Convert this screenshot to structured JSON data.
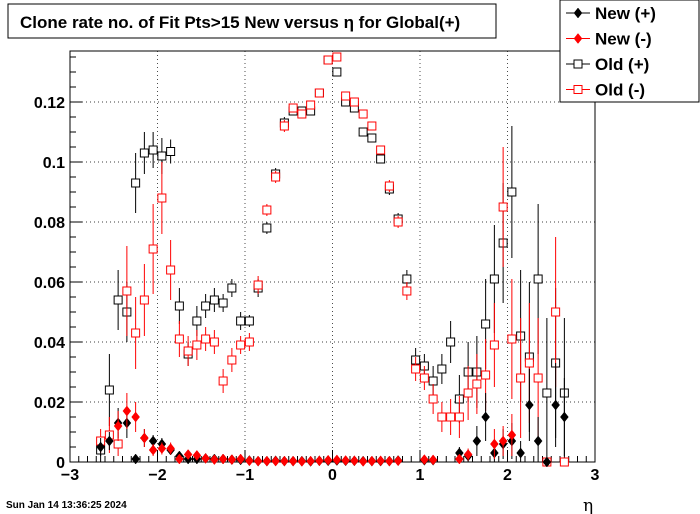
{
  "chart_data": {
    "type": "scatter",
    "title": "Clone rate no. of Fit Pts>15 New versus η for Global(+)",
    "xlabel": "η",
    "ylabel": "",
    "xlim": [
      -3,
      3
    ],
    "ylim": [
      0,
      0.137
    ],
    "x_ticks": [
      -3,
      -2,
      -1,
      0,
      1,
      2,
      3
    ],
    "x_tick_labels": [
      "−3",
      "−2",
      "−1",
      "0",
      "1",
      "2",
      "3"
    ],
    "y_ticks": [
      0,
      0.02,
      0.04,
      0.06,
      0.08,
      0.1,
      0.12
    ],
    "y_tick_labels": [
      "0",
      "0.02",
      "0.04",
      "0.06",
      "0.08",
      "0.1",
      "0.12"
    ],
    "grid": true,
    "legend_position": "top-right",
    "timestamp": "Sun Jan 14 13:36:25 2024",
    "series": [
      {
        "name": "New (+)",
        "color": "#000000",
        "marker": "diamond-filled",
        "x": [
          -2.65,
          -2.55,
          -2.45,
          -2.35,
          -2.25,
          -2.15,
          -2.05,
          -1.95,
          -1.85,
          -1.75,
          -1.65,
          -1.55,
          -1.45,
          -1.35,
          -1.25,
          -1.15,
          -1.05,
          -0.95,
          -0.85,
          -0.75,
          -0.65,
          -0.55,
          -0.45,
          -0.35,
          -0.25,
          -0.15,
          -0.05,
          0.05,
          0.15,
          0.25,
          0.35,
          0.45,
          0.55,
          0.65,
          0.75,
          1.05,
          1.15,
          1.45,
          1.55,
          1.65,
          1.75,
          1.85,
          1.95,
          2.05,
          2.15,
          2.25,
          2.35,
          2.45,
          2.55,
          2.65
        ],
        "y": [
          0.005,
          0.007,
          0.013,
          0.013,
          0.001,
          0.008,
          0.007,
          0.006,
          0.004,
          0.002,
          0.001,
          0.001,
          0.0012,
          0.001,
          0.001,
          0.0008,
          0.0007,
          0.0005,
          0.0003,
          0.0003,
          0.0004,
          0.0003,
          0.0003,
          0.0003,
          0.0002,
          0.0004,
          0.0004,
          0.0005,
          0.0004,
          0.0004,
          0.0003,
          0.0003,
          0.0003,
          0.0003,
          0.0005,
          0.0006,
          0.0006,
          0.003,
          0.002,
          0.007,
          0.015,
          0.003,
          0.006,
          0.007,
          0.003,
          0.019,
          0.007,
          0.0,
          0.019,
          0.015
        ],
        "err": [
          0.003,
          0.003,
          0.005,
          0.005,
          0.0015,
          0.003,
          0.002,
          0.002,
          0.0015,
          0.001,
          0.0005,
          0.0005,
          0.0005,
          0.0004,
          0.0004,
          0.0003,
          0.0003,
          0.0002,
          0.0002,
          0.0002,
          0.0002,
          0.0002,
          0.0002,
          0.0002,
          0.0002,
          0.0002,
          0.0002,
          0.0002,
          0.0002,
          0.0002,
          0.0002,
          0.0002,
          0.0002,
          0.0002,
          0.0003,
          0.0005,
          0.0005,
          0.002,
          0.002,
          0.005,
          0.008,
          0.003,
          0.005,
          0.006,
          0.004,
          0.012,
          0.008,
          0.0,
          0.014,
          0.013
        ]
      },
      {
        "name": "New (-)",
        "color": "#ff0000",
        "marker": "diamond-filled",
        "x": [
          -2.45,
          -2.35,
          -2.25,
          -2.15,
          -2.05,
          -1.95,
          -1.85,
          -1.75,
          -1.65,
          -1.55,
          -1.45,
          -1.35,
          -1.25,
          -1.15,
          -1.05,
          -0.95,
          -0.85,
          -0.75,
          -0.65,
          -0.55,
          -0.45,
          -0.35,
          -0.25,
          -0.15,
          -0.05,
          0.05,
          0.15,
          0.25,
          0.35,
          0.45,
          0.55,
          0.65,
          0.75,
          1.05,
          1.15,
          1.45,
          1.55,
          1.85,
          1.95,
          2.05
        ],
        "y": [
          0.012,
          0.017,
          0.015,
          0.008,
          0.004,
          0.0045,
          0.0045,
          0.001,
          0.0025,
          0.0022,
          0.0012,
          0.0008,
          0.001,
          0.0008,
          0.001,
          0.0004,
          0.0003,
          0.0003,
          0.0003,
          0.0003,
          0.0003,
          0.0002,
          0.0003,
          0.0004,
          0.0006,
          0.0007,
          0.0005,
          0.0004,
          0.0002,
          0.0003,
          0.0004,
          0.0003,
          0.0004,
          0.0008,
          0.0007,
          0.001,
          0.0025,
          0.006,
          0.007,
          0.009
        ],
        "err": [
          0.005,
          0.006,
          0.005,
          0.003,
          0.002,
          0.002,
          0.002,
          0.001,
          0.0012,
          0.001,
          0.0006,
          0.0005,
          0.0005,
          0.0004,
          0.0004,
          0.0002,
          0.0002,
          0.0002,
          0.0002,
          0.0002,
          0.0002,
          0.0002,
          0.0002,
          0.0002,
          0.0002,
          0.0002,
          0.0002,
          0.0002,
          0.0002,
          0.0002,
          0.0002,
          0.0002,
          0.0003,
          0.0005,
          0.0005,
          0.001,
          0.002,
          0.005,
          0.005,
          0.007
        ]
      },
      {
        "name": "Old (+)",
        "color": "#000000",
        "marker": "square-open",
        "x": [
          -2.65,
          -2.55,
          -2.45,
          -2.35,
          -2.25,
          -2.15,
          -2.05,
          -1.95,
          -1.85,
          -1.75,
          -1.65,
          -1.55,
          -1.45,
          -1.35,
          -1.25,
          -1.15,
          -1.05,
          -0.95,
          -0.85,
          -0.75,
          -0.65,
          -0.55,
          -0.45,
          -0.35,
          -0.25,
          -0.15,
          -0.05,
          0.05,
          0.15,
          0.25,
          0.35,
          0.45,
          0.55,
          0.65,
          0.75,
          0.85,
          0.95,
          1.05,
          1.15,
          1.25,
          1.35,
          1.45,
          1.55,
          1.65,
          1.75,
          1.85,
          1.95,
          2.05,
          2.15,
          2.25,
          2.35,
          2.45,
          2.55,
          2.65
        ],
        "y": [
          0.004,
          0.024,
          0.054,
          0.05,
          0.093,
          0.103,
          0.104,
          0.102,
          0.1035,
          0.052,
          0.036,
          0.047,
          0.052,
          0.054,
          0.053,
          0.058,
          0.047,
          0.047,
          0.058,
          0.078,
          0.096,
          0.113,
          0.117,
          0.117,
          0.117,
          0.123,
          0.134,
          0.13,
          0.12,
          0.118,
          0.11,
          0.108,
          0.101,
          0.091,
          0.081,
          0.061,
          0.034,
          0.032,
          0.027,
          0.031,
          0.04,
          0.021,
          0.03,
          0.03,
          0.046,
          0.061,
          0.073,
          0.09,
          0.042,
          0.035,
          0.061,
          0.023,
          0.033,
          0.023
        ],
        "err": [
          0.004,
          0.012,
          0.01,
          0.01,
          0.01,
          0.007,
          0.006,
          0.006,
          0.004,
          0.006,
          0.004,
          0.005,
          0.004,
          0.004,
          0.003,
          0.003,
          0.003,
          0.002,
          0.003,
          0.002,
          0.002,
          0.002,
          0.001,
          0.001,
          0.001,
          0.001,
          0.001,
          0.001,
          0.001,
          0.001,
          0.001,
          0.001,
          0.001,
          0.002,
          0.002,
          0.003,
          0.004,
          0.004,
          0.005,
          0.005,
          0.007,
          0.008,
          0.01,
          0.012,
          0.015,
          0.018,
          0.02,
          0.022,
          0.022,
          0.025,
          0.025,
          0.025,
          0.025,
          0.025
        ]
      },
      {
        "name": "Old (-)",
        "color": "#ff0000",
        "marker": "square-open",
        "x": [
          -2.65,
          -2.55,
          -2.45,
          -2.35,
          -2.25,
          -2.15,
          -2.05,
          -1.95,
          -1.85,
          -1.75,
          -1.65,
          -1.55,
          -1.45,
          -1.35,
          -1.25,
          -1.15,
          -1.05,
          -0.95,
          -0.85,
          -0.75,
          -0.65,
          -0.55,
          -0.45,
          -0.35,
          -0.25,
          -0.15,
          -0.05,
          0.05,
          0.15,
          0.25,
          0.35,
          0.45,
          0.55,
          0.65,
          0.75,
          0.85,
          0.95,
          1.05,
          1.15,
          1.25,
          1.35,
          1.45,
          1.55,
          1.65,
          1.75,
          1.85,
          1.95,
          2.05,
          2.15,
          2.25,
          2.35,
          2.45,
          2.55,
          2.65
        ],
        "y": [
          0.007,
          0.009,
          0.006,
          0.057,
          0.043,
          0.054,
          0.071,
          0.088,
          0.064,
          0.041,
          0.037,
          0.039,
          0.041,
          0.04,
          0.027,
          0.034,
          0.039,
          0.04,
          0.059,
          0.084,
          0.095,
          0.112,
          0.118,
          0.116,
          0.119,
          0.123,
          0.134,
          0.135,
          0.122,
          0.12,
          0.116,
          0.112,
          0.104,
          0.092,
          0.08,
          0.057,
          0.031,
          0.028,
          0.021,
          0.015,
          0.015,
          0.015,
          0.023,
          0.026,
          0.029,
          0.039,
          0.085,
          0.041,
          0.028,
          0.033,
          0.028,
          0.0,
          0.05,
          0.0
        ],
        "err": [
          0.004,
          0.006,
          0.004,
          0.015,
          0.012,
          0.012,
          0.015,
          0.012,
          0.01,
          0.006,
          0.005,
          0.005,
          0.004,
          0.004,
          0.004,
          0.004,
          0.003,
          0.003,
          0.003,
          0.002,
          0.002,
          0.002,
          0.001,
          0.001,
          0.001,
          0.001,
          0.001,
          0.001,
          0.001,
          0.001,
          0.001,
          0.001,
          0.001,
          0.002,
          0.002,
          0.003,
          0.004,
          0.004,
          0.005,
          0.005,
          0.006,
          0.007,
          0.009,
          0.01,
          0.012,
          0.014,
          0.02,
          0.02,
          0.02,
          0.02,
          0.02,
          0.0,
          0.025,
          0.0
        ]
      }
    ]
  }
}
